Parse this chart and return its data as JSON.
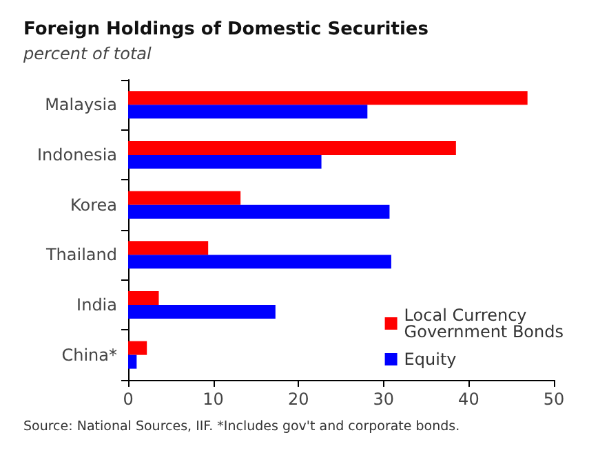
{
  "chart_data": {
    "type": "bar",
    "orientation": "horizontal",
    "title": "Foreign Holdings of Domestic Securities",
    "subtitle": "percent of total",
    "categories": [
      "Malaysia",
      "Indonesia",
      "Korea",
      "Thailand",
      "India",
      "China*"
    ],
    "series": [
      {
        "name": "Local Currency Government Bonds",
        "color": "#ff0000",
        "values": [
          46.9,
          38.5,
          13.2,
          9.4,
          3.6,
          2.2
        ]
      },
      {
        "name": "Equity",
        "color": "#0000ff",
        "values": [
          28.1,
          22.7,
          30.7,
          30.9,
          17.3,
          1.0
        ]
      }
    ],
    "xlim": [
      0,
      50
    ],
    "xticks": [
      0,
      10,
      20,
      30,
      40,
      50
    ],
    "grid": false,
    "legend": "bottom right",
    "annotations": [
      "Source: National Sources, IIF. *Includes gov't and corporate bonds."
    ]
  }
}
